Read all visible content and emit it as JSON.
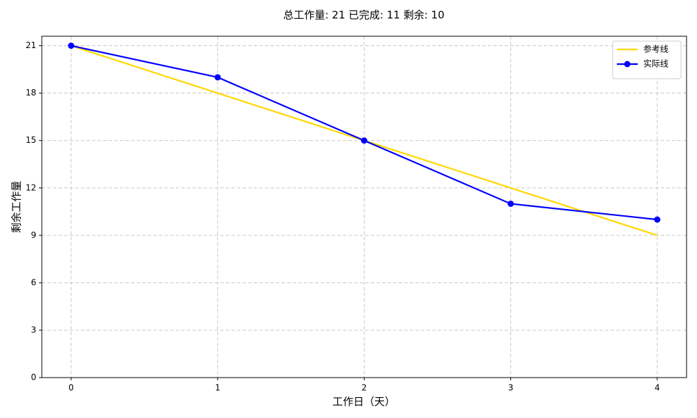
{
  "chart_data": {
    "type": "line",
    "title": "总工作量: 21  已完成: 11  剩余: 10",
    "xlabel": "工作日（天）",
    "ylabel": "剩余工作量",
    "x": [
      0,
      1,
      2,
      3,
      4
    ],
    "series": [
      {
        "name": "参考线",
        "color": "#ffd700",
        "markers": false,
        "values": [
          21,
          18,
          15,
          12,
          9
        ]
      },
      {
        "name": "实际线",
        "color": "#0000ff",
        "markers": true,
        "values": [
          21,
          19,
          15,
          11,
          10
        ]
      }
    ],
    "xlim": [
      -0.2,
      4.2
    ],
    "xticks": [
      0,
      1,
      2,
      3,
      4
    ],
    "ylim": [
      0,
      21.6
    ],
    "yticks": [
      0,
      3,
      6,
      9,
      12,
      15,
      18,
      21
    ],
    "grid": true,
    "legend": "upper right"
  }
}
